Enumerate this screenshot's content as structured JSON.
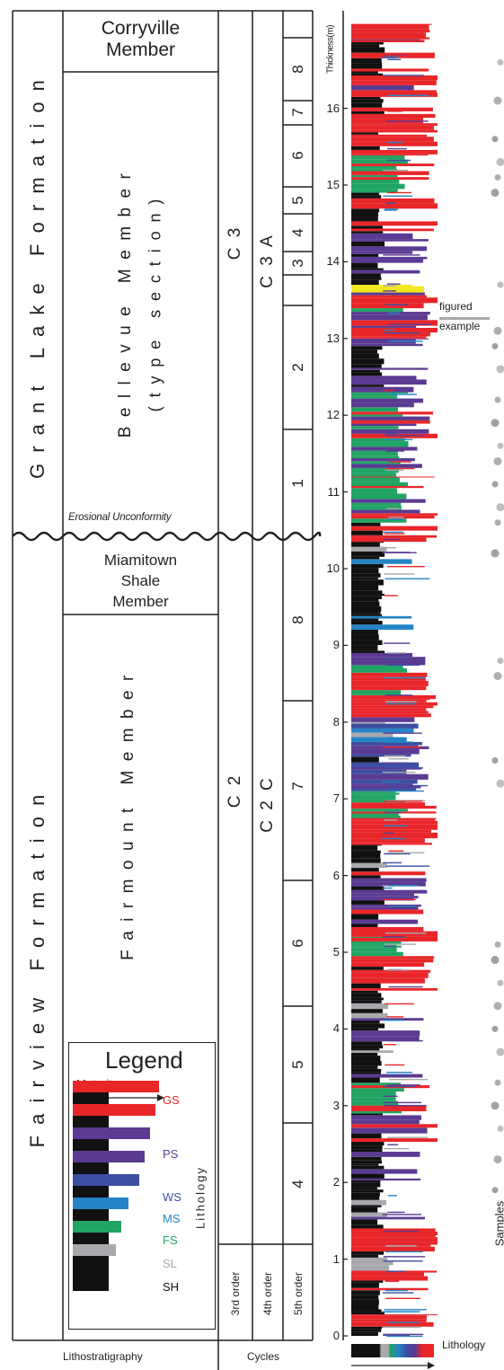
{
  "formations": {
    "grant_lake": "Grant Lake Formation",
    "fairview": "Fairview Formation"
  },
  "members": {
    "corryville": [
      "Corryville",
      "Member"
    ],
    "bellevue_title": "Bellevue Member",
    "bellevue_sub": "(type section)",
    "miamitown": [
      "Miamitown",
      "Shale",
      "Member"
    ],
    "fairmount": "Fairmount Member"
  },
  "unconformity_label": "Erosional Unconformity",
  "cycles": {
    "third_order": [
      "C 3",
      "C 2"
    ],
    "fourth_order": [
      "C 3 A",
      "C 2 C"
    ],
    "fifth_order_upper": [
      "8",
      "7",
      "6",
      "5",
      "4",
      "3",
      "2",
      "1"
    ],
    "fifth_order_lower": [
      "8",
      "7",
      "6",
      "5",
      "4"
    ]
  },
  "column_labels": {
    "third": "3rd order",
    "fourth": "4th order",
    "fifth": "5th order"
  },
  "footer": {
    "litho": "Lithostratigraphy",
    "cycles": "Cycles",
    "lithology": "Lithology"
  },
  "axis": {
    "title": "Thickness(m)",
    "ticks": [
      "0",
      "1",
      "2",
      "3",
      "4",
      "5",
      "6",
      "7",
      "8",
      "9",
      "10",
      "11",
      "12",
      "13",
      "14",
      "15",
      "16"
    ]
  },
  "figured_example": [
    "figured",
    "example"
  ],
  "samples_label": "Samples",
  "legend": {
    "title": "Legend",
    "maturity": "Maturity",
    "lithology": "Lithology",
    "items": [
      {
        "code": "GS",
        "color": "#e8262a"
      },
      {
        "code": "PS",
        "color": "#5b3a92"
      },
      {
        "code": "WS",
        "color": "#3d4fa3"
      },
      {
        "code": "MS",
        "color": "#2584c6"
      },
      {
        "code": "FS",
        "color": "#21a464"
      },
      {
        "code": "SL",
        "color": "#a7a9ac"
      },
      {
        "code": "SH",
        "color": "#111111"
      }
    ]
  },
  "colors": {
    "GS": "#e8262a",
    "PS": "#5b3a92",
    "WS": "#3d4fa3",
    "MS": "#2584c6",
    "FS": "#21a464",
    "SL": "#a7a9ac",
    "SH": "#111111",
    "YL": "#f2e61c"
  }
}
